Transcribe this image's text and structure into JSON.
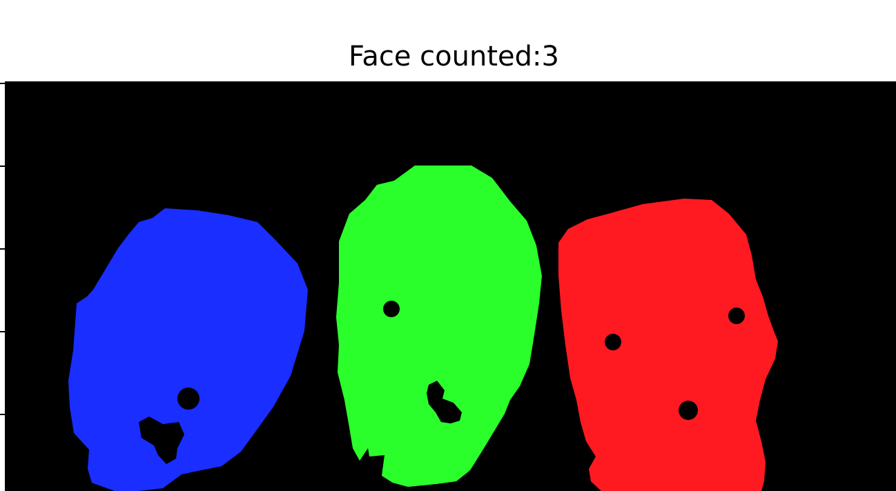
{
  "figure": {
    "title": "Face counted:3"
  },
  "image": {
    "background_color": "#000000",
    "faces": [
      {
        "color": "#1a2eff",
        "position_label": "left"
      },
      {
        "color": "#2bff2b",
        "position_label": "middle"
      },
      {
        "color": "#ff1a22",
        "position_label": "right"
      }
    ]
  }
}
